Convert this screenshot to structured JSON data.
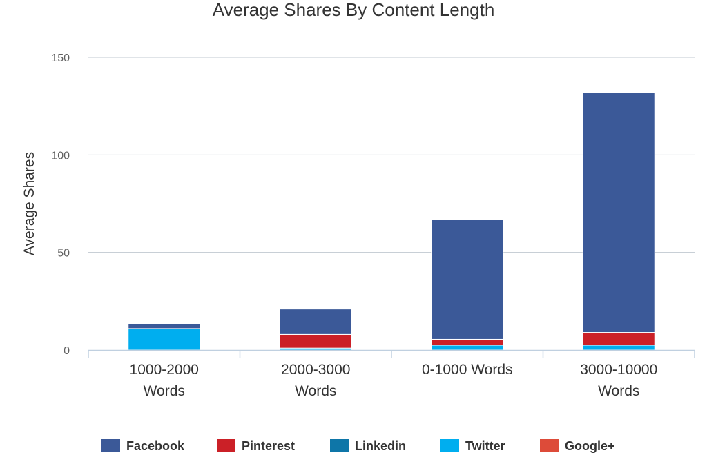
{
  "chart_data": {
    "type": "bar",
    "stacked": true,
    "title": "Average Shares By Content Length",
    "xlabel": "",
    "ylabel": "Average Shares",
    "ylim": [
      0,
      150
    ],
    "yticks": [
      0,
      50,
      100,
      150
    ],
    "grid": true,
    "legend_position": "bottom",
    "categories": [
      [
        "1000-2000",
        "Words"
      ],
      [
        "2000-3000",
        "Words"
      ],
      [
        "0-1000 Words"
      ],
      [
        "3000-10000",
        "Words"
      ]
    ],
    "series": [
      {
        "name": "Twitter",
        "color": "#00aeef",
        "values": [
          11,
          1,
          2.5,
          2.5
        ]
      },
      {
        "name": "Linkedin",
        "color": "#0e76a8",
        "values": [
          0,
          0,
          0,
          0
        ]
      },
      {
        "name": "Google+",
        "color": "#dd4b39",
        "values": [
          0,
          0,
          0,
          0
        ]
      },
      {
        "name": "Pinterest",
        "color": "#cb2027",
        "values": [
          0,
          7,
          3,
          6.5
        ]
      },
      {
        "name": "Facebook",
        "color": "#3b5998",
        "values": [
          2.5,
          13,
          61.5,
          123
        ]
      }
    ],
    "legend_order": [
      "Facebook",
      "Pinterest",
      "Linkedin",
      "Twitter",
      "Google+"
    ]
  }
}
